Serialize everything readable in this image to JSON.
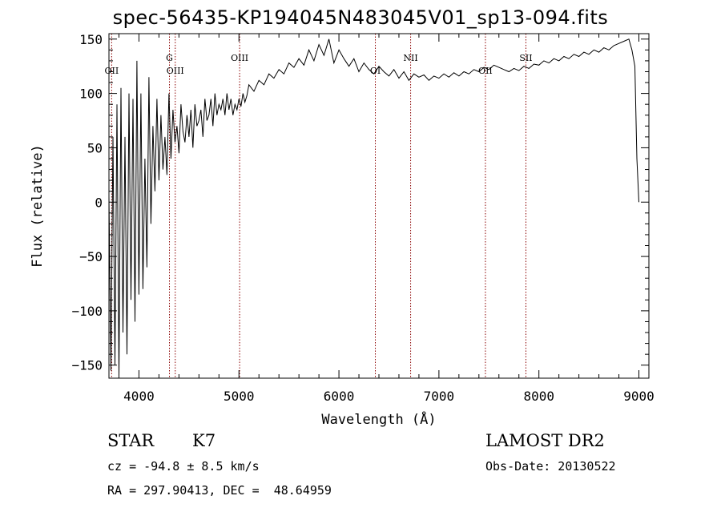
{
  "chart_data": {
    "type": "line",
    "title": "spec-56435-KP194045N483045V01_sp13-094.fits",
    "xlabel": "Wavelength (Å)",
    "ylabel": "Flux (relative)",
    "xlim": [
      3700,
      9100
    ],
    "ylim": [
      -162,
      155
    ],
    "xticks": [
      4000,
      5000,
      6000,
      7000,
      8000,
      9000
    ],
    "yticks": [
      150,
      100,
      50,
      0,
      -50,
      -100,
      -150
    ],
    "grid": false,
    "line_color": "#000000",
    "marker_color": "#8b0000",
    "series": [
      {
        "x": [
          3700,
          3720,
          3740,
          3760,
          3780,
          3800,
          3820,
          3840,
          3860,
          3880,
          3900,
          3920,
          3940,
          3960,
          3980,
          4000,
          4020,
          4040,
          4060,
          4080,
          4100,
          4120,
          4140,
          4160,
          4180,
          4200,
          4220,
          4240,
          4260,
          4280,
          4300,
          4320,
          4340,
          4360,
          4380,
          4400,
          4420,
          4440,
          4460,
          4480,
          4500,
          4520,
          4540,
          4560,
          4580,
          4600,
          4620,
          4640,
          4660,
          4680,
          4700,
          4720,
          4740,
          4760,
          4780,
          4800,
          4820,
          4840,
          4860,
          4880,
          4900,
          4920,
          4940,
          4960,
          4980,
          5000,
          5020,
          5040,
          5060,
          5080,
          5100,
          5150,
          5200,
          5250,
          5300,
          5350,
          5400,
          5450,
          5500,
          5550,
          5600,
          5650,
          5700,
          5750,
          5800,
          5850,
          5900,
          5950,
          6000,
          6050,
          6100,
          6150,
          6200,
          6250,
          6300,
          6350,
          6400,
          6450,
          6500,
          6550,
          6600,
          6650,
          6700,
          6750,
          6800,
          6850,
          6900,
          6950,
          7000,
          7050,
          7100,
          7150,
          7200,
          7250,
          7300,
          7350,
          7400,
          7450,
          7500,
          7550,
          7600,
          7650,
          7700,
          7750,
          7800,
          7850,
          7900,
          7950,
          8000,
          8050,
          8100,
          8150,
          8200,
          8250,
          8300,
          8350,
          8400,
          8450,
          8500,
          8550,
          8600,
          8650,
          8700,
          8750,
          8800,
          8850,
          8900,
          8930,
          8960,
          8980,
          9000
        ],
        "y": [
          5,
          -155,
          60,
          -150,
          90,
          -160,
          105,
          -120,
          60,
          -140,
          100,
          -90,
          95,
          -110,
          130,
          -85,
          100,
          -80,
          40,
          -60,
          115,
          -20,
          70,
          10,
          95,
          20,
          80,
          30,
          60,
          25,
          100,
          40,
          85,
          55,
          70,
          45,
          90,
          65,
          55,
          80,
          60,
          85,
          50,
          90,
          70,
          75,
          85,
          60,
          95,
          75,
          80,
          95,
          70,
          100,
          80,
          90,
          85,
          95,
          80,
          100,
          85,
          95,
          80,
          90,
          85,
          95,
          88,
          100,
          92,
          98,
          108,
          102,
          112,
          108,
          118,
          114,
          122,
          118,
          128,
          124,
          132,
          126,
          140,
          130,
          145,
          135,
          150,
          128,
          140,
          132,
          125,
          132,
          120,
          128,
          122,
          118,
          125,
          120,
          116,
          122,
          114,
          120,
          112,
          118,
          115,
          117,
          112,
          116,
          114,
          118,
          115,
          119,
          116,
          120,
          118,
          122,
          120,
          124,
          122,
          126,
          124,
          122,
          120,
          123,
          121,
          125,
          123,
          127,
          126,
          130,
          128,
          132,
          130,
          134,
          132,
          136,
          134,
          138,
          136,
          140,
          138,
          142,
          140,
          144,
          146,
          148,
          150,
          140,
          125,
          40,
          0
        ]
      }
    ],
    "lines": [
      {
        "label": "OII",
        "x": 3727
      },
      {
        "label": "G",
        "x": 4305
      },
      {
        "label": "OIII",
        "x": 4363
      },
      {
        "label": "OIII",
        "x": 5007
      },
      {
        "label": "OI",
        "x": 6364
      },
      {
        "label": "NII",
        "x": 6717
      },
      {
        "label": "OII",
        "x": 7465
      },
      {
        "label": "SII",
        "x": 7870
      }
    ]
  },
  "info": {
    "class_label": "STAR",
    "subclass_label": "K7",
    "survey_label": "LAMOST DR2",
    "cz_text": "cz = -94.8 ± 8.5 km/s",
    "obs_date_text": "Obs-Date: 20130522",
    "coords_text": "RA = 297.90413, DEC =  48.64959"
  }
}
